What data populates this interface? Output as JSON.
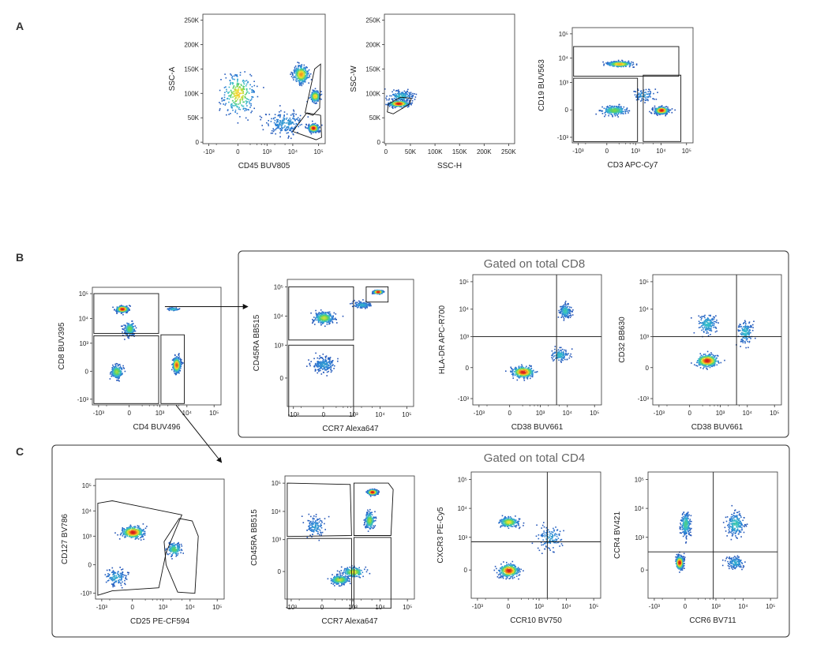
{
  "panel_letters": [
    "A",
    "B",
    "C"
  ],
  "group_titles": {
    "cd8": "Gated on total CD8",
    "cd4": "Gated on total CD4"
  },
  "colors": {
    "density": [
      "#1f3fa8",
      "#2b7fd6",
      "#35c0c9",
      "#5fd35a",
      "#f2e233",
      "#f28a1e",
      "#d7191c"
    ],
    "gate": "#111111",
    "frame": "#333333"
  },
  "chart_data": [
    {
      "id": "A1",
      "type": "scatter",
      "subtype": "flow-cytometry-density",
      "xlabel": "CD45 BUV805",
      "ylabel": "SSC-A",
      "x_scale": "biexponential",
      "y_scale": "linear",
      "xticks": [
        "-10³",
        "0",
        "10³",
        "10⁴",
        "10⁵"
      ],
      "yticks": [
        "0",
        "50K",
        "100K",
        "150K",
        "200K",
        "250K"
      ],
      "populations": [
        {
          "x": 0,
          "y": 100000,
          "sx": 0.7,
          "sy": 0.42,
          "weight": 0.7,
          "intensity": 0.7
        },
        {
          "x": 20000,
          "y": 140000,
          "sx": 0.32,
          "sy": 0.18,
          "weight": 0.8,
          "intensity": 0.8
        },
        {
          "x": 70000,
          "y": 95000,
          "sx": 0.22,
          "sy": 0.12,
          "weight": 0.5,
          "intensity": 0.7
        },
        {
          "x": 60000,
          "y": 30000,
          "sx": 0.22,
          "sy": 0.08,
          "weight": 0.8,
          "intensity": 1.0
        },
        {
          "x": 5000,
          "y": 40000,
          "sx": 0.9,
          "sy": 0.25,
          "weight": 0.5,
          "intensity": 0.2
        }
      ],
      "gates": [
        {
          "shape": "polygon",
          "points": [
            [
              10000,
              22000
            ],
            [
              80000,
              5000
            ],
            [
              130000,
              10000
            ],
            [
              120000,
              55000
            ],
            [
              35000,
              60000
            ]
          ]
        },
        {
          "shape": "polygon",
          "points": [
            [
              30000,
              60000
            ],
            [
              70000,
              150000
            ],
            [
              120000,
              160000
            ],
            [
              110000,
              70000
            ],
            [
              60000,
              55000
            ]
          ]
        }
      ]
    },
    {
      "id": "A2",
      "type": "scatter",
      "subtype": "flow-cytometry-density",
      "xlabel": "SSC-H",
      "ylabel": "SSC-W",
      "x_scale": "linear",
      "y_scale": "linear",
      "xticks": [
        "0",
        "50K",
        "100K",
        "150K",
        "200K",
        "250K"
      ],
      "yticks": [
        "0",
        "50K",
        "100K",
        "150K",
        "200K",
        "250K"
      ],
      "populations": [
        {
          "x": 25000,
          "y": 80000,
          "sx": 0.2,
          "sy": 0.06,
          "weight": 0.9,
          "intensity": 1.0
        },
        {
          "x": 30000,
          "y": 95000,
          "sx": 0.25,
          "sy": 0.12,
          "weight": 0.4,
          "intensity": 0.3
        }
      ],
      "gates": [
        {
          "shape": "polygon",
          "points": [
            [
              3000,
              62000
            ],
            [
              5000,
              78000
            ],
            [
              30000,
              92000
            ],
            [
              52000,
              90000
            ],
            [
              48000,
              78000
            ],
            [
              15000,
              58000
            ]
          ]
        }
      ]
    },
    {
      "id": "A3",
      "type": "scatter",
      "subtype": "flow-cytometry-density",
      "xlabel": "CD3 APC-Cy7",
      "ylabel": "CD19 BUV563",
      "x_scale": "biexponential",
      "y_scale": "biexponential",
      "xticks": [
        "-10³",
        "0",
        "10³",
        "10⁴",
        "10⁵"
      ],
      "yticks": [
        "-10³",
        "0",
        "10³",
        "10⁴",
        "10⁵"
      ],
      "populations": [
        {
          "x": 200,
          "y": 6000,
          "sx": 0.55,
          "sy": 0.12,
          "weight": 0.8,
          "intensity": 0.75
        },
        {
          "x": 100,
          "y": 0,
          "sx": 0.55,
          "sy": 0.22,
          "weight": 0.6,
          "intensity": 0.5
        },
        {
          "x": 10000,
          "y": 0,
          "sx": 0.3,
          "sy": 0.16,
          "weight": 0.9,
          "intensity": 1.0
        },
        {
          "x": 2000,
          "y": 300,
          "sx": 0.5,
          "sy": 0.3,
          "weight": 0.2,
          "intensity": 0.2
        }
      ],
      "gates": [
        {
          "shape": "rect",
          "x0": -1500,
          "x1": 50000,
          "y0": 1800,
          "y1": 30000
        },
        {
          "shape": "rect",
          "x0": -1500,
          "x1": 1200,
          "y0": -1500,
          "y1": 1500
        },
        {
          "shape": "rect",
          "x0": 2000,
          "x1": 60000,
          "y0": -1500,
          "y1": 2000
        }
      ]
    },
    {
      "id": "B1",
      "type": "scatter",
      "subtype": "flow-cytometry-density",
      "xlabel": "CD4 BUV496",
      "ylabel": "CD8 BUV395",
      "x_scale": "biexponential",
      "y_scale": "biexponential",
      "xticks": [
        "-10³",
        "0",
        "10³",
        "10⁴",
        "10⁵"
      ],
      "yticks": [
        "-10³",
        "0",
        "10³",
        "10⁴",
        "10⁵"
      ],
      "populations": [
        {
          "x": -100,
          "y": 25000,
          "sx": 0.25,
          "sy": 0.14,
          "weight": 0.8,
          "intensity": 1.0
        },
        {
          "x": 0,
          "y": 4000,
          "sx": 0.22,
          "sy": 0.3,
          "weight": 0.5,
          "intensity": 0.5
        },
        {
          "x": -200,
          "y": 0,
          "sx": 0.25,
          "sy": 0.3,
          "weight": 0.5,
          "intensity": 0.55
        },
        {
          "x": 4000,
          "y": 100,
          "sx": 0.16,
          "sy": 0.35,
          "weight": 0.9,
          "intensity": 0.9
        },
        {
          "x": 3000,
          "y": 25000,
          "sx": 0.25,
          "sy": 0.06,
          "weight": 0.15,
          "intensity": 0.3
        }
      ],
      "gates": [
        {
          "shape": "rect",
          "x0": -1500,
          "x1": 900,
          "y0": 2500,
          "y1": 100000
        },
        {
          "shape": "rect",
          "x0": -1500,
          "x1": 900,
          "y0": -1500,
          "y1": 2000
        },
        {
          "shape": "rect",
          "x0": 1100,
          "x1": 8000,
          "y0": -1500,
          "y1": 2200
        }
      ]
    },
    {
      "id": "B2",
      "type": "scatter",
      "subtype": "flow-cytometry-density",
      "xlabel": "CCR7 Alexa647",
      "ylabel": "CD45RA BB515",
      "x_scale": "biexponential",
      "y_scale": "biexponential",
      "xticks": [
        "-10³",
        "0",
        "10³",
        "10⁴",
        "10⁵"
      ],
      "yticks": [
        "0",
        "10³",
        "10⁴",
        "10⁵"
      ],
      "populations": [
        {
          "x": 0,
          "y": 9000,
          "sx": 0.4,
          "sy": 0.22,
          "weight": 0.8,
          "intensity": 0.6
        },
        {
          "x": 8000,
          "y": 70000,
          "sx": 0.2,
          "sy": 0.06,
          "weight": 0.8,
          "intensity": 1.0
        },
        {
          "x": 0,
          "y": 200,
          "sx": 0.5,
          "sy": 0.3,
          "weight": 0.5,
          "intensity": 0.2
        },
        {
          "x": 2000,
          "y": 25000,
          "sx": 0.4,
          "sy": 0.12,
          "weight": 0.3,
          "intensity": 0.25
        }
      ],
      "gates": [
        {
          "shape": "rect",
          "x0": -1500,
          "x1": 1000,
          "y0": 1500,
          "y1": 100000
        },
        {
          "shape": "rect",
          "x0": -1500,
          "x1": 1000,
          "y0": -1500,
          "y1": 1000
        },
        {
          "shape": "rect",
          "x0": 3000,
          "x1": 20000,
          "y0": 30000,
          "y1": 100000
        }
      ]
    },
    {
      "id": "B3",
      "type": "scatter",
      "subtype": "flow-cytometry-density",
      "xlabel": "CD38 BUV661",
      "ylabel": "HLA-DR APC-R700",
      "x_scale": "biexponential",
      "y_scale": "biexponential",
      "xticks": [
        "-10³",
        "0",
        "10³",
        "10⁴",
        "10⁵"
      ],
      "yticks": [
        "-10³",
        "0",
        "10³",
        "10⁴",
        "10⁵"
      ],
      "populations": [
        {
          "x": 200,
          "y": -50,
          "sx": 0.45,
          "sy": 0.22,
          "weight": 0.9,
          "intensity": 1.0
        },
        {
          "x": 8000,
          "y": 9000,
          "sx": 0.22,
          "sy": 0.28,
          "weight": 0.4,
          "intensity": 0.35
        },
        {
          "x": 5000,
          "y": 200,
          "sx": 0.35,
          "sy": 0.25,
          "weight": 0.3,
          "intensity": 0.3
        }
      ],
      "quadrant": {
        "x": 4000,
        "y": 1000
      }
    },
    {
      "id": "B4",
      "type": "scatter",
      "subtype": "flow-cytometry-density",
      "xlabel": "CD38 BUV661",
      "ylabel": "CD32 BB630",
      "x_scale": "biexponential",
      "y_scale": "biexponential",
      "xticks": [
        "-10³",
        "0",
        "10³",
        "10⁴",
        "10⁵"
      ],
      "yticks": [
        "-10³",
        "0",
        "10³",
        "10⁴",
        "10⁵"
      ],
      "populations": [
        {
          "x": 300,
          "y": 100,
          "sx": 0.45,
          "sy": 0.25,
          "weight": 0.9,
          "intensity": 1.0
        },
        {
          "x": 300,
          "y": 3000,
          "sx": 0.4,
          "sy": 0.4,
          "weight": 0.4,
          "intensity": 0.3
        },
        {
          "x": 8000,
          "y": 1500,
          "sx": 0.3,
          "sy": 0.45,
          "weight": 0.35,
          "intensity": 0.3
        }
      ],
      "quadrant": {
        "x": 4000,
        "y": 1000
      }
    },
    {
      "id": "C1",
      "type": "scatter",
      "subtype": "flow-cytometry-density",
      "xlabel": "CD25 PE-CF594",
      "ylabel": "CD127 BV786",
      "x_scale": "biexponential",
      "y_scale": "biexponential",
      "xticks": [
        "-10³",
        "0",
        "10³",
        "10⁴",
        "10⁵"
      ],
      "yticks": [
        "-10³",
        "0",
        "10³",
        "10⁴",
        "10⁵"
      ],
      "populations": [
        {
          "x": 0,
          "y": 1500,
          "sx": 0.45,
          "sy": 0.26,
          "weight": 0.9,
          "intensity": 1.0
        },
        {
          "x": 2500,
          "y": 300,
          "sx": 0.3,
          "sy": 0.3,
          "weight": 0.4,
          "intensity": 0.45
        },
        {
          "x": -300,
          "y": -200,
          "sx": 0.45,
          "sy": 0.35,
          "weight": 0.3,
          "intensity": 0.25
        }
      ],
      "gates": [
        {
          "shape": "polygon",
          "points": [
            [
              -1400,
              20000
            ],
            [
              -400,
              25000
            ],
            [
              5000,
              7000
            ],
            [
              1300,
              200
            ],
            [
              700,
              -600
            ],
            [
              -400,
              -800
            ],
            [
              -1400,
              -1200
            ]
          ]
        },
        {
          "shape": "polygon",
          "points": [
            [
              1100,
              600
            ],
            [
              4000,
              5000
            ],
            [
              12000,
              4000
            ],
            [
              20000,
              1000
            ],
            [
              15000,
              -1000
            ],
            [
              3500,
              -900
            ],
            [
              1300,
              0
            ]
          ]
        }
      ]
    },
    {
      "id": "C2",
      "type": "scatter",
      "subtype": "flow-cytometry-density",
      "xlabel": "CCR7 Alexa647",
      "ylabel": "CD45RA BB515",
      "x_scale": "biexponential",
      "y_scale": "biexponential",
      "xticks": [
        "-10³",
        "0",
        "10³",
        "10⁴",
        "10⁵"
      ],
      "yticks": [
        "0",
        "10³",
        "10⁴",
        "10⁵"
      ],
      "populations": [
        {
          "x": 5000,
          "y": 50000,
          "sx": 0.2,
          "sy": 0.1,
          "weight": 0.9,
          "intensity": 1.0
        },
        {
          "x": 4000,
          "y": 5000,
          "sx": 0.2,
          "sy": 0.35,
          "weight": 0.5,
          "intensity": 0.55
        },
        {
          "x": 300,
          "y": -100,
          "sx": 0.4,
          "sy": 0.18,
          "weight": 0.6,
          "intensity": 0.6
        },
        {
          "x": 1000,
          "y": 0,
          "sx": 0.45,
          "sy": 0.2,
          "weight": 0.5,
          "intensity": 0.65
        },
        {
          "x": -100,
          "y": 3000,
          "sx": 0.4,
          "sy": 0.4,
          "weight": 0.3,
          "intensity": 0.2
        }
      ],
      "gates": [
        {
          "shape": "polygon",
          "points": [
            [
              -1400,
              100000
            ],
            [
              800,
              90000
            ],
            [
              900,
              1400
            ],
            [
              -1400,
              1300
            ]
          ]
        },
        {
          "shape": "polygon",
          "points": [
            [
              1100,
              100000
            ],
            [
              20000,
              100000
            ],
            [
              30000,
              60000
            ],
            [
              25000,
              1400
            ],
            [
              1100,
              1400
            ]
          ]
        },
        {
          "shape": "rect",
          "x0": -1400,
          "x1": 900,
          "y0": -1500,
          "y1": 1100
        },
        {
          "shape": "rect",
          "x0": 1100,
          "x1": 25000,
          "y0": -1500,
          "y1": 1200
        }
      ]
    },
    {
      "id": "C3",
      "type": "scatter",
      "subtype": "flow-cytometry-density",
      "xlabel": "CCR10 BV750",
      "ylabel": "CXCR3 PE-Cy5",
      "x_scale": "biexponential",
      "y_scale": "biexponential",
      "xticks": [
        "-10³",
        "0",
        "10³",
        "10⁴",
        "10⁵"
      ],
      "yticks": [
        "0",
        "10³",
        "10⁴",
        "10⁵"
      ],
      "populations": [
        {
          "x": 0,
          "y": 3500,
          "sx": 0.4,
          "sy": 0.2,
          "weight": 0.6,
          "intensity": 0.65
        },
        {
          "x": 0,
          "y": 0,
          "sx": 0.4,
          "sy": 0.25,
          "weight": 0.9,
          "intensity": 1.0
        },
        {
          "x": 2500,
          "y": 1000,
          "sx": 0.6,
          "sy": 0.5,
          "weight": 0.3,
          "intensity": 0.2
        }
      ],
      "quadrant": {
        "x": 2000,
        "y": 700
      }
    },
    {
      "id": "C4",
      "type": "scatter",
      "subtype": "flow-cytometry-density",
      "xlabel": "CCR6 BV711",
      "ylabel": "CCR4 BV421",
      "x_scale": "biexponential",
      "y_scale": "biexponential",
      "xticks": [
        "-10³",
        "0",
        "10³",
        "10⁴",
        "10⁵"
      ],
      "yticks": [
        "0",
        "10³",
        "10⁴",
        "10⁵"
      ],
      "populations": [
        {
          "x": -80,
          "y": 100,
          "sx": 0.15,
          "sy": 0.25,
          "weight": 0.9,
          "intensity": 1.0
        },
        {
          "x": 0,
          "y": 3000,
          "sx": 0.2,
          "sy": 0.45,
          "weight": 0.55,
          "intensity": 0.4
        },
        {
          "x": 5000,
          "y": 3000,
          "sx": 0.35,
          "sy": 0.45,
          "weight": 0.5,
          "intensity": 0.35
        },
        {
          "x": 5000,
          "y": 100,
          "sx": 0.35,
          "sy": 0.25,
          "weight": 0.3,
          "intensity": 0.25
        }
      ],
      "quadrant": {
        "x": 800,
        "y": 300
      }
    }
  ]
}
